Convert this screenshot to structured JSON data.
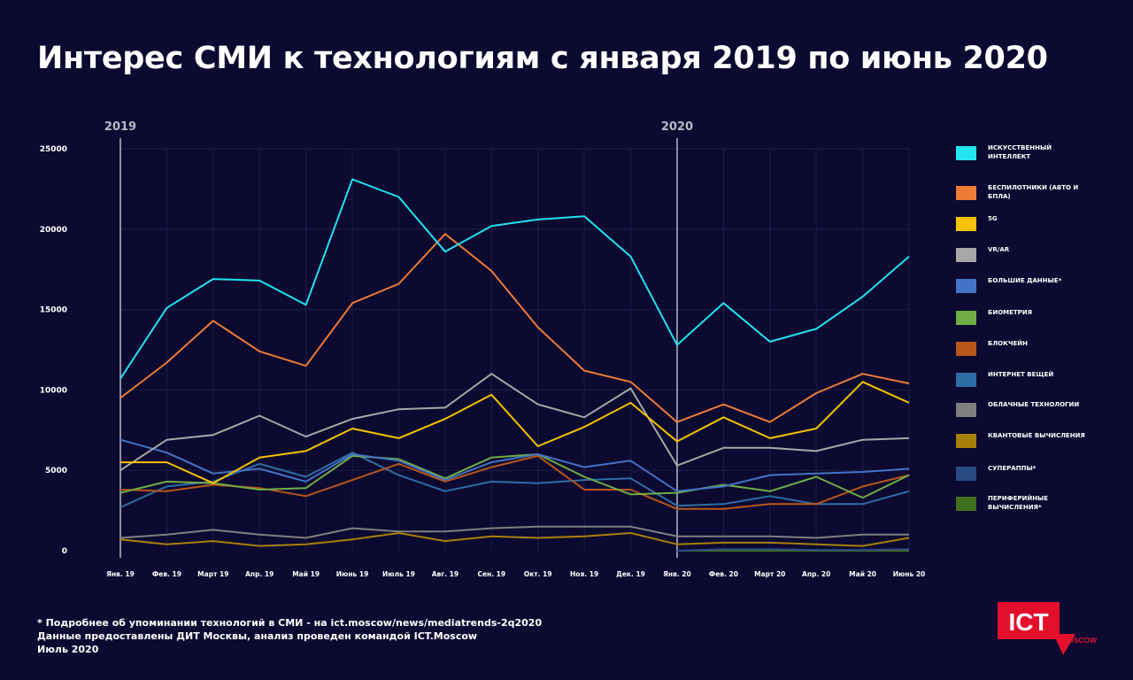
{
  "title": "Интерес СМИ к технологиям с января 2019 по июнь 2020",
  "year_markers": [
    "2019",
    "2020"
  ],
  "footer": {
    "line1": "* Подробнее об упоминании технологий в СМИ - на ict.moscow/news/mediatrends-2q2020",
    "line2": "Данные предоставлены ДИТ Москвы, анализ проведен командой ICT.Moscow",
    "line3": "Июль 2020"
  },
  "logo": {
    "main": "ICT",
    "sub": "MOSCOW",
    "color": "#e3102b"
  },
  "chart_data": {
    "type": "line",
    "title": "Интерес СМИ к технологиям с января 2019 по июнь 2020",
    "xlabel": "",
    "ylabel": "",
    "ylim": [
      0,
      25000
    ],
    "yticks": [
      0,
      5000,
      10000,
      15000,
      20000,
      25000
    ],
    "grid": true,
    "legend_position": "right",
    "categories": [
      "Янв. 19",
      "Фев. 19",
      "Март 19",
      "Апр. 19",
      "Май 19",
      "Июнь 19",
      "Июль 19",
      "Авг. 19",
      "Сен. 19",
      "Окт. 19",
      "Ноя. 19",
      "Дек. 19",
      "Янв. 20",
      "Фев. 20",
      "Март 20",
      "Апр. 20",
      "Май 20",
      "Июнь 20"
    ],
    "series": [
      {
        "name": "ИСКУССТВЕННЫЙ ИНТЕЛЛЕКТ",
        "color": "#22e3ef",
        "values": [
          10700,
          15100,
          16900,
          16800,
          15300,
          23100,
          22000,
          18600,
          20200,
          20600,
          20800,
          18300,
          12800,
          15400,
          13000,
          13800,
          15800,
          18300
        ]
      },
      {
        "name": "БЕСПИЛОТНИКИ (АВТО И БПЛА)",
        "color": "#ee7b36",
        "values": [
          9500,
          11700,
          14300,
          12400,
          11500,
          15400,
          16600,
          19700,
          17400,
          13900,
          11200,
          10500,
          8000,
          9100,
          8000,
          9800,
          11000,
          10400
        ]
      },
      {
        "name": "5G",
        "color": "#f7c200",
        "values": [
          5500,
          5500,
          4200,
          5800,
          6200,
          7600,
          7000,
          8200,
          9700,
          6500,
          7700,
          9200,
          6800,
          8300,
          7000,
          7600,
          10500,
          9200
        ]
      },
      {
        "name": "VR/AR",
        "color": "#a7a7a7",
        "values": [
          5000,
          6900,
          7200,
          8400,
          7100,
          8200,
          8800,
          8900,
          11000,
          9100,
          8300,
          10100,
          5300,
          6400,
          6400,
          6200,
          6900,
          7000
        ]
      },
      {
        "name": "БОЛЬШИЕ ДАННЫЕ*",
        "color": "#4472c4",
        "values": [
          6900,
          6100,
          4800,
          5100,
          4300,
          6000,
          5600,
          4400,
          5500,
          6000,
          5200,
          5600,
          3700,
          4000,
          4700,
          4800,
          4900,
          5100
        ]
      },
      {
        "name": "БИОМЕТРИЯ",
        "color": "#70ad47",
        "values": [
          3600,
          4300,
          4200,
          3800,
          3900,
          5900,
          5700,
          4500,
          5800,
          6000,
          4600,
          3500,
          3600,
          4100,
          3700,
          4600,
          3300,
          4700
        ]
      },
      {
        "name": "БЛОКЧЕЙН",
        "color": "#b8561b",
        "values": [
          3800,
          3700,
          4100,
          3900,
          3400,
          4400,
          5400,
          4300,
          5200,
          5900,
          3800,
          3800,
          2600,
          2600,
          2900,
          2900,
          4000,
          4700
        ]
      },
      {
        "name": "ИНТЕРНЕТ ВЕЩЕЙ",
        "color": "#2e6da4",
        "values": [
          2700,
          4000,
          4300,
          5400,
          4600,
          6100,
          4700,
          3700,
          4300,
          4200,
          4400,
          4500,
          2800,
          2900,
          3400,
          2900,
          2900,
          3700
        ]
      },
      {
        "name": "ОБЛАЧНЫЕ ТЕХНОЛОГИИ",
        "color": "#7f7f7f",
        "values": [
          800,
          1000,
          1300,
          1000,
          800,
          1400,
          1200,
          1200,
          1400,
          1500,
          1500,
          1500,
          900,
          900,
          900,
          800,
          1000,
          1000
        ]
      },
      {
        "name": "КВАНТОВЫЕ ВЫЧИСЛЕНИЯ",
        "color": "#a6800b",
        "values": [
          700,
          400,
          600,
          300,
          400,
          700,
          1100,
          600,
          900,
          800,
          900,
          1100,
          400,
          500,
          500,
          400,
          300,
          800
        ]
      },
      {
        "name": "СУПЕРАППЫ*",
        "color": "#2a4a86",
        "values": [
          null,
          null,
          null,
          null,
          null,
          null,
          null,
          null,
          null,
          null,
          null,
          null,
          0,
          100,
          100,
          50,
          50,
          100
        ]
      },
      {
        "name": "ПЕРИФЕРИЙНЫЕ ВЫЧИСЛЕНИЯ*",
        "color": "#40701f",
        "values": [
          null,
          null,
          null,
          null,
          null,
          null,
          null,
          null,
          null,
          null,
          null,
          null,
          0,
          0,
          0,
          0,
          0,
          0
        ]
      }
    ]
  }
}
